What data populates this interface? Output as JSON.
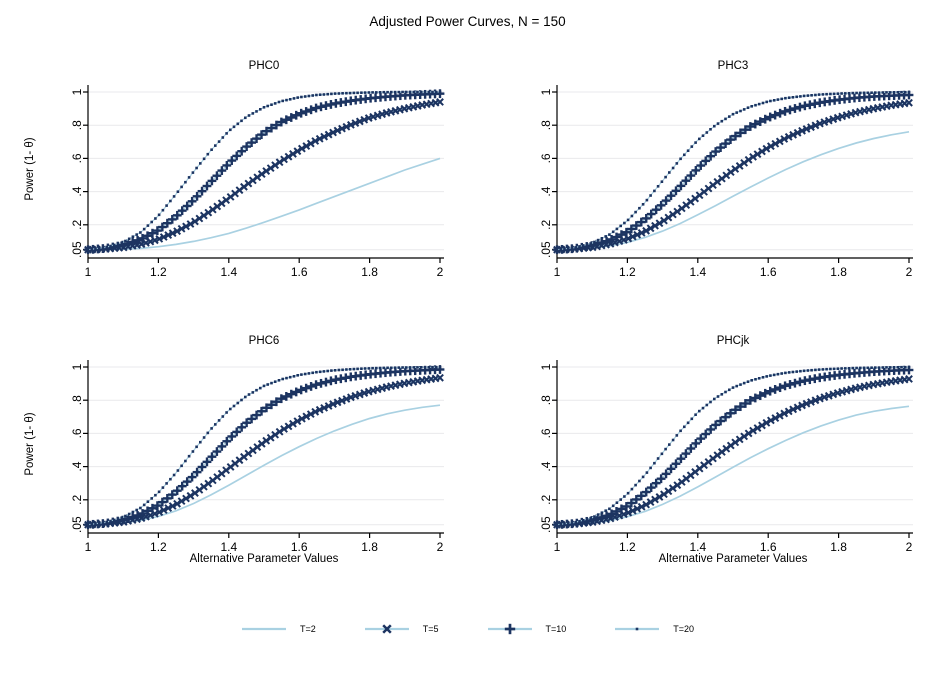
{
  "title": "Adjusted Power Curves, N = 150",
  "axes": {
    "x_label": "Alternative Parameter Values",
    "y_label": "Power (1- θ)",
    "ticks": {
      "x": [
        {
          "v": 1,
          "label": "1"
        },
        {
          "v": 1.2,
          "label": "1.2"
        },
        {
          "v": 1.4,
          "label": "1.4"
        },
        {
          "v": 1.6,
          "label": "1.6"
        },
        {
          "v": 1.8,
          "label": "1.8"
        },
        {
          "v": 2,
          "label": "2"
        }
      ],
      "y": [
        {
          "v": 0.05,
          "label": ".05"
        },
        {
          "v": 0.2,
          "label": ".2"
        },
        {
          "v": 0.4,
          "label": ".4"
        },
        {
          "v": 0.6,
          "label": ".6"
        },
        {
          "v": 0.8,
          "label": ".8"
        },
        {
          "v": 1,
          "label": "1"
        }
      ]
    },
    "xlim": [
      1,
      2
    ],
    "ylim": [
      0,
      1.04
    ],
    "grid": "horizontal"
  },
  "colors": {
    "line": "#a9d1e2",
    "marker": "#1c3461",
    "grid": "#e9e9ec",
    "axis": "#000000",
    "background": "#ffffff"
  },
  "legend": [
    {
      "label": "T=2",
      "marker": "none"
    },
    {
      "label": "T=5",
      "marker": "x"
    },
    {
      "label": "T=10",
      "marker": "plus"
    },
    {
      "label": "T=20",
      "marker": "dot"
    }
  ],
  "chart_data": [
    {
      "type": "line",
      "title": "PHC0",
      "x": [
        1,
        1.05,
        1.1,
        1.15,
        1.2,
        1.25,
        1.3,
        1.35,
        1.4,
        1.45,
        1.5,
        1.55,
        1.6,
        1.65,
        1.7,
        1.75,
        1.8,
        1.85,
        1.9,
        1.95,
        2
      ],
      "series": [
        {
          "name": "T=2",
          "marker": "none",
          "values": [
            0.05,
            0.05,
            0.053,
            0.058,
            0.068,
            0.082,
            0.1,
            0.122,
            0.148,
            0.18,
            0.215,
            0.252,
            0.29,
            0.33,
            0.37,
            0.41,
            0.45,
            0.49,
            0.53,
            0.565,
            0.6
          ]
        },
        {
          "name": "T=5",
          "marker": "x",
          "values": [
            0.05,
            0.054,
            0.063,
            0.082,
            0.113,
            0.158,
            0.215,
            0.285,
            0.36,
            0.44,
            0.515,
            0.585,
            0.65,
            0.71,
            0.76,
            0.805,
            0.845,
            0.875,
            0.9,
            0.922,
            0.94
          ]
        },
        {
          "name": "T=10",
          "marker": "plus",
          "values": [
            0.05,
            0.058,
            0.078,
            0.113,
            0.168,
            0.25,
            0.35,
            0.46,
            0.57,
            0.67,
            0.755,
            0.82,
            0.868,
            0.905,
            0.93,
            0.948,
            0.962,
            0.972,
            0.98,
            0.985,
            0.99
          ]
        },
        {
          "name": "T=20",
          "marker": "dot",
          "values": [
            0.05,
            0.064,
            0.095,
            0.155,
            0.255,
            0.385,
            0.52,
            0.65,
            0.765,
            0.85,
            0.908,
            0.945,
            0.968,
            0.982,
            0.99,
            0.994,
            0.997,
            0.999,
            1,
            1,
            1
          ]
        }
      ]
    },
    {
      "type": "line",
      "title": "PHC3",
      "x": [
        1,
        1.05,
        1.1,
        1.15,
        1.2,
        1.25,
        1.3,
        1.35,
        1.4,
        1.45,
        1.5,
        1.55,
        1.6,
        1.65,
        1.7,
        1.75,
        1.8,
        1.85,
        1.9,
        1.95,
        2
      ],
      "series": [
        {
          "name": "T=2",
          "marker": "none",
          "values": [
            0.05,
            0.053,
            0.06,
            0.073,
            0.094,
            0.124,
            0.162,
            0.208,
            0.26,
            0.315,
            0.372,
            0.428,
            0.482,
            0.533,
            0.58,
            0.622,
            0.66,
            0.693,
            0.72,
            0.742,
            0.76
          ]
        },
        {
          "name": "T=5",
          "marker": "x",
          "values": [
            0.05,
            0.054,
            0.064,
            0.084,
            0.115,
            0.16,
            0.22,
            0.292,
            0.37,
            0.45,
            0.527,
            0.6,
            0.665,
            0.722,
            0.77,
            0.812,
            0.847,
            0.877,
            0.9,
            0.92,
            0.935
          ]
        },
        {
          "name": "T=10",
          "marker": "plus",
          "values": [
            0.05,
            0.057,
            0.075,
            0.107,
            0.158,
            0.232,
            0.325,
            0.43,
            0.54,
            0.64,
            0.725,
            0.793,
            0.845,
            0.885,
            0.915,
            0.937,
            0.953,
            0.965,
            0.973,
            0.978,
            0.982
          ]
        },
        {
          "name": "T=20",
          "marker": "dot",
          "values": [
            0.05,
            0.062,
            0.09,
            0.142,
            0.225,
            0.335,
            0.465,
            0.595,
            0.71,
            0.8,
            0.866,
            0.912,
            0.943,
            0.963,
            0.976,
            0.985,
            0.99,
            0.994,
            0.996,
            0.998,
            0.999
          ]
        }
      ]
    },
    {
      "type": "line",
      "title": "PHC6",
      "x": [
        1,
        1.05,
        1.1,
        1.15,
        1.2,
        1.25,
        1.3,
        1.35,
        1.4,
        1.45,
        1.5,
        1.55,
        1.6,
        1.65,
        1.7,
        1.75,
        1.8,
        1.85,
        1.9,
        1.95,
        2
      ],
      "series": [
        {
          "name": "T=2",
          "marker": "none",
          "values": [
            0.05,
            0.053,
            0.061,
            0.076,
            0.1,
            0.134,
            0.178,
            0.23,
            0.288,
            0.348,
            0.408,
            0.466,
            0.52,
            0.57,
            0.615,
            0.655,
            0.69,
            0.718,
            0.74,
            0.757,
            0.77
          ]
        },
        {
          "name": "T=5",
          "marker": "x",
          "values": [
            0.05,
            0.055,
            0.066,
            0.088,
            0.123,
            0.172,
            0.235,
            0.31,
            0.39,
            0.47,
            0.547,
            0.618,
            0.68,
            0.735,
            0.78,
            0.82,
            0.853,
            0.88,
            0.902,
            0.92,
            0.935
          ]
        },
        {
          "name": "T=10",
          "marker": "plus",
          "values": [
            0.05,
            0.058,
            0.078,
            0.112,
            0.168,
            0.248,
            0.345,
            0.455,
            0.565,
            0.663,
            0.745,
            0.81,
            0.858,
            0.895,
            0.922,
            0.942,
            0.956,
            0.967,
            0.975,
            0.98,
            0.985
          ]
        },
        {
          "name": "T=20",
          "marker": "dot",
          "values": [
            0.05,
            0.064,
            0.095,
            0.152,
            0.243,
            0.362,
            0.497,
            0.628,
            0.74,
            0.825,
            0.886,
            0.926,
            0.952,
            0.969,
            0.98,
            0.987,
            0.992,
            0.995,
            0.997,
            0.998,
            0.999
          ]
        }
      ]
    },
    {
      "type": "line",
      "title": "PHCjk",
      "x": [
        1,
        1.05,
        1.1,
        1.15,
        1.2,
        1.25,
        1.3,
        1.35,
        1.4,
        1.45,
        1.5,
        1.55,
        1.6,
        1.65,
        1.7,
        1.75,
        1.8,
        1.85,
        1.9,
        1.95,
        2
      ],
      "series": [
        {
          "name": "T=2",
          "marker": "none",
          "values": [
            0.05,
            0.053,
            0.061,
            0.075,
            0.098,
            0.13,
            0.172,
            0.222,
            0.278,
            0.337,
            0.396,
            0.454,
            0.508,
            0.558,
            0.604,
            0.645,
            0.68,
            0.71,
            0.733,
            0.75,
            0.763
          ]
        },
        {
          "name": "T=5",
          "marker": "x",
          "values": [
            0.05,
            0.054,
            0.065,
            0.086,
            0.12,
            0.167,
            0.228,
            0.3,
            0.38,
            0.46,
            0.537,
            0.608,
            0.67,
            0.725,
            0.772,
            0.812,
            0.845,
            0.873,
            0.895,
            0.913,
            0.928
          ]
        },
        {
          "name": "T=10",
          "marker": "plus",
          "values": [
            0.05,
            0.057,
            0.076,
            0.11,
            0.163,
            0.24,
            0.335,
            0.443,
            0.552,
            0.65,
            0.733,
            0.8,
            0.85,
            0.888,
            0.916,
            0.937,
            0.952,
            0.963,
            0.972,
            0.978,
            0.982
          ]
        },
        {
          "name": "T=20",
          "marker": "dot",
          "values": [
            0.05,
            0.063,
            0.092,
            0.147,
            0.235,
            0.35,
            0.483,
            0.613,
            0.727,
            0.813,
            0.876,
            0.918,
            0.946,
            0.965,
            0.977,
            0.985,
            0.99,
            0.994,
            0.996,
            0.998,
            0.999
          ]
        }
      ]
    }
  ]
}
